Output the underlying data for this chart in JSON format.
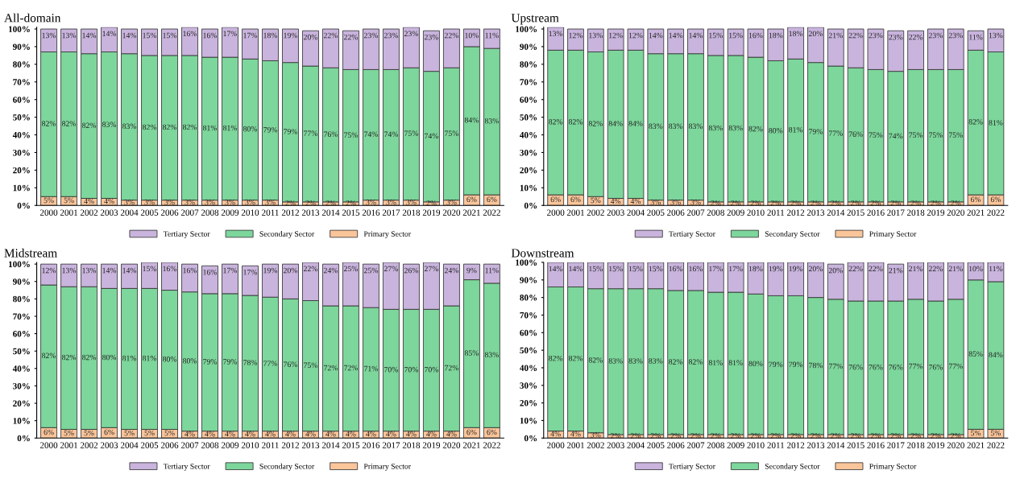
{
  "chart_data": [
    {
      "type": "bar",
      "title": "All-domain",
      "stacked": true,
      "legend": "bottom",
      "grid": false,
      "categories": [
        "2000",
        "2001",
        "2002",
        "2003",
        "2004",
        "2005",
        "2006",
        "2007",
        "2008",
        "2009",
        "2010",
        "2011",
        "2012",
        "2013",
        "2014",
        "2015",
        "2016",
        "2017",
        "2018",
        "2019",
        "2020",
        "2021",
        "2022"
      ],
      "ylim": [
        0,
        101
      ],
      "yticks": [
        {
          "value": 0,
          "label": "0%"
        },
        {
          "value": 10,
          "label": "10%"
        },
        {
          "value": 20,
          "label": "20%"
        },
        {
          "value": 30,
          "label": "30%"
        },
        {
          "value": 40,
          "label": "40%"
        },
        {
          "value": 50,
          "label": "50%"
        },
        {
          "value": 60,
          "label": "60%"
        },
        {
          "value": 70,
          "label": "70%"
        },
        {
          "value": 80,
          "label": "80%"
        },
        {
          "value": 90,
          "label": "90%"
        },
        {
          "value": 100,
          "label": "100%"
        }
      ],
      "series": [
        {
          "name": "Primary Sector",
          "color": "#fbc59a",
          "values": [
            5,
            5,
            4,
            4,
            3,
            3,
            3,
            3,
            3,
            3,
            3,
            3,
            2,
            2,
            2,
            2,
            3,
            3,
            3,
            2,
            3,
            6,
            6
          ],
          "value_labels": [
            "5%",
            "5%",
            "4%",
            "4%",
            "3%",
            "3%",
            "3%",
            "3%",
            "3%",
            "3%",
            "3%",
            "3%",
            "2%",
            "2%",
            "2%",
            "2%",
            "3%",
            "3%",
            "3%",
            "2%",
            "3%",
            "6%",
            "6%"
          ]
        },
        {
          "name": "Secondary Sector",
          "color": "#7dd69b",
          "values": [
            82,
            82,
            82,
            83,
            83,
            82,
            82,
            82,
            81,
            81,
            80,
            79,
            79,
            77,
            76,
            75,
            74,
            74,
            75,
            74,
            75,
            84,
            83
          ],
          "value_labels": [
            "82%",
            "82%",
            "82%",
            "83%",
            "83%",
            "82%",
            "82%",
            "82%",
            "81%",
            "81%",
            "80%",
            "79%",
            "79%",
            "77%",
            "76%",
            "75%",
            "74%",
            "74%",
            "75%",
            "74%",
            "75%",
            "84%",
            "83%"
          ]
        },
        {
          "name": "Tertiary Sector",
          "color": "#c9b4dd",
          "values": [
            13,
            13,
            14,
            14,
            14,
            15,
            15,
            16,
            16,
            17,
            17,
            18,
            19,
            20,
            22,
            22,
            23,
            23,
            23,
            23,
            22,
            10,
            11
          ],
          "value_labels": [
            "13%",
            "13%",
            "14%",
            "14%",
            "14%",
            "15%",
            "15%",
            "16%",
            "16%",
            "17%",
            "17%",
            "18%",
            "19%",
            "20%",
            "22%",
            "22%",
            "23%",
            "23%",
            "23%",
            "23%",
            "22%",
            "10%",
            "11%"
          ]
        }
      ]
    },
    {
      "type": "bar",
      "title": "Upstream",
      "stacked": true,
      "legend": "bottom",
      "grid": false,
      "categories": [
        "2000",
        "2001",
        "2002",
        "2003",
        "2004",
        "2005",
        "2006",
        "2007",
        "2008",
        "2009",
        "2010",
        "2011",
        "2012",
        "2013",
        "2014",
        "2015",
        "2016",
        "2017",
        "2018",
        "2019",
        "2020",
        "2021",
        "2022"
      ],
      "ylim": [
        0,
        101
      ],
      "yticks": [
        {
          "value": 0,
          "label": "0%"
        },
        {
          "value": 10,
          "label": "10%"
        },
        {
          "value": 20,
          "label": "20%"
        },
        {
          "value": 30,
          "label": "30%"
        },
        {
          "value": 40,
          "label": "40%"
        },
        {
          "value": 50,
          "label": "50%"
        },
        {
          "value": 60,
          "label": "60%"
        },
        {
          "value": 70,
          "label": "70%"
        },
        {
          "value": 80,
          "label": "80%"
        },
        {
          "value": 90,
          "label": "90%"
        },
        {
          "value": 100,
          "label": "100%"
        }
      ],
      "series": [
        {
          "name": "Primary Sector",
          "color": "#fbc59a",
          "values": [
            6,
            6,
            5,
            4,
            4,
            3,
            3,
            3,
            2,
            2,
            2,
            2,
            2,
            2,
            2,
            2,
            2,
            2,
            2,
            2,
            2,
            6,
            6
          ],
          "value_labels": [
            "6%",
            "6%",
            "5%",
            "4%",
            "4%",
            "3%",
            "3%",
            "3%",
            "2%",
            "2%",
            "2%",
            "2%",
            "2%",
            "2%",
            "2%",
            "2%",
            "2%",
            "2%",
            "2%",
            "2%",
            "2%",
            "6%",
            "6%"
          ]
        },
        {
          "name": "Secondary Sector",
          "color": "#7dd69b",
          "values": [
            82,
            82,
            82,
            84,
            84,
            83,
            83,
            83,
            83,
            83,
            82,
            80,
            81,
            79,
            77,
            76,
            75,
            74,
            75,
            75,
            75,
            82,
            81
          ],
          "value_labels": [
            "82%",
            "82%",
            "82%",
            "84%",
            "84%",
            "83%",
            "83%",
            "83%",
            "83%",
            "83%",
            "82%",
            "80%",
            "81%",
            "79%",
            "77%",
            "76%",
            "75%",
            "74%",
            "75%",
            "75%",
            "75%",
            "82%",
            "81%"
          ]
        },
        {
          "name": "Tertiary Sector",
          "color": "#c9b4dd",
          "values": [
            13,
            12,
            13,
            12,
            12,
            14,
            14,
            14,
            15,
            15,
            16,
            18,
            18,
            20,
            21,
            22,
            23,
            23,
            22,
            23,
            23,
            11,
            13
          ],
          "value_labels": [
            "13%",
            "12%",
            "13%",
            "12%",
            "12%",
            "14%",
            "14%",
            "14%",
            "15%",
            "15%",
            "16%",
            "18%",
            "18%",
            "20%",
            "21%",
            "22%",
            "23%",
            "23%",
            "22%",
            "23%",
            "23%",
            "11%",
            "13%"
          ]
        }
      ]
    },
    {
      "type": "bar",
      "title": "Midstream",
      "stacked": true,
      "legend": "bottom",
      "grid": false,
      "categories": [
        "2000",
        "2001",
        "2002",
        "2003",
        "2004",
        "2005",
        "2006",
        "2007",
        "2008",
        "2009",
        "2010",
        "2011",
        "2012",
        "2013",
        "2014",
        "2015",
        "2016",
        "2017",
        "2018",
        "2019",
        "2020",
        "2021",
        "2022"
      ],
      "ylim": [
        0,
        101
      ],
      "yticks": [
        {
          "value": 0,
          "label": "0%"
        },
        {
          "value": 10,
          "label": "10%"
        },
        {
          "value": 20,
          "label": "20%"
        },
        {
          "value": 30,
          "label": "30%"
        },
        {
          "value": 40,
          "label": "40%"
        },
        {
          "value": 50,
          "label": "50%"
        },
        {
          "value": 60,
          "label": "60%"
        },
        {
          "value": 70,
          "label": "70%"
        },
        {
          "value": 80,
          "label": "80%"
        },
        {
          "value": 90,
          "label": "90%"
        },
        {
          "value": 100,
          "label": "100%"
        }
      ],
      "series": [
        {
          "name": "Primary Sector",
          "color": "#fbc59a",
          "values": [
            6,
            5,
            5,
            6,
            5,
            5,
            5,
            4,
            4,
            4,
            4,
            4,
            4,
            4,
            4,
            4,
            4,
            4,
            4,
            4,
            4,
            6,
            6
          ],
          "value_labels": [
            "6%",
            "5%",
            "5%",
            "6%",
            "5%",
            "5%",
            "5%",
            "4%",
            "4%",
            "4%",
            "4%",
            "4%",
            "4%",
            "4%",
            "4%",
            "4%",
            "4%",
            "4%",
            "4%",
            "4%",
            "4%",
            "6%",
            "6%"
          ]
        },
        {
          "name": "Secondary Sector",
          "color": "#7dd69b",
          "values": [
            82,
            82,
            82,
            80,
            81,
            81,
            80,
            80,
            79,
            79,
            78,
            77,
            76,
            75,
            72,
            72,
            71,
            70,
            70,
            70,
            72,
            85,
            83
          ],
          "value_labels": [
            "82%",
            "82%",
            "82%",
            "80%",
            "81%",
            "81%",
            "80%",
            "80%",
            "79%",
            "79%",
            "78%",
            "77%",
            "76%",
            "75%",
            "72%",
            "72%",
            "71%",
            "70%",
            "70%",
            "70%",
            "72%",
            "85%",
            "83%"
          ]
        },
        {
          "name": "Tertiary Sector",
          "color": "#c9b4dd",
          "values": [
            12,
            13,
            13,
            14,
            14,
            15,
            16,
            16,
            16,
            17,
            17,
            19,
            20,
            22,
            24,
            25,
            25,
            27,
            26,
            27,
            24,
            9,
            11
          ],
          "value_labels": [
            "12%",
            "13%",
            "13%",
            "14%",
            "14%",
            "15%",
            "16%",
            "16%",
            "16%",
            "17%",
            "17%",
            "19%",
            "20%",
            "22%",
            "24%",
            "25%",
            "25%",
            "27%",
            "26%",
            "27%",
            "24%",
            "9%",
            "11%"
          ]
        }
      ]
    },
    {
      "type": "bar",
      "title": "Downstream",
      "stacked": true,
      "legend": "bottom",
      "grid": false,
      "categories": [
        "2000",
        "2001",
        "2002",
        "2003",
        "2004",
        "2005",
        "2006",
        "2007",
        "2008",
        "2009",
        "2010",
        "2011",
        "2012",
        "2013",
        "2014",
        "2015",
        "2016",
        "2017",
        "2018",
        "2019",
        "2020",
        "2021",
        "2022"
      ],
      "ylim": [
        0,
        100
      ],
      "yticks": [
        {
          "value": 0,
          "label": "0%"
        },
        {
          "value": 10,
          "label": "10%"
        },
        {
          "value": 20,
          "label": "20%"
        },
        {
          "value": 30,
          "label": "30%"
        },
        {
          "value": 40,
          "label": "40%"
        },
        {
          "value": 50,
          "label": "50%"
        },
        {
          "value": 60,
          "label": "60%"
        },
        {
          "value": 70,
          "label": "70%"
        },
        {
          "value": 80,
          "label": "80%"
        },
        {
          "value": 90,
          "label": "90%"
        },
        {
          "value": 100,
          "label": "100%"
        }
      ],
      "series": [
        {
          "name": "Primary Sector",
          "color": "#fbc59a",
          "values": [
            4,
            4,
            3,
            2,
            2,
            2,
            2,
            2,
            2,
            2,
            2,
            2,
            2,
            2,
            2,
            2,
            2,
            2,
            2,
            2,
            2,
            5,
            5
          ],
          "value_labels": [
            "4%",
            "4%",
            "3%",
            "2%",
            "2%",
            "2%",
            "2%",
            "2%",
            "2%",
            "2%",
            "2%",
            "2%",
            "2%",
            "2%",
            "2%",
            "2%",
            "2%",
            "2%",
            "2%",
            "2%",
            "2%",
            "5%",
            "5%"
          ]
        },
        {
          "name": "Secondary Sector",
          "color": "#7dd69b",
          "values": [
            82,
            82,
            82,
            83,
            83,
            83,
            82,
            82,
            81,
            81,
            80,
            79,
            79,
            78,
            77,
            76,
            76,
            76,
            77,
            76,
            77,
            85,
            84
          ],
          "value_labels": [
            "82%",
            "82%",
            "82%",
            "83%",
            "83%",
            "83%",
            "82%",
            "82%",
            "81%",
            "81%",
            "80%",
            "79%",
            "79%",
            "78%",
            "77%",
            "76%",
            "76%",
            "76%",
            "77%",
            "76%",
            "77%",
            "85%",
            "84%"
          ]
        },
        {
          "name": "Tertiary Sector",
          "color": "#c9b4dd",
          "values": [
            14,
            14,
            15,
            15,
            15,
            15,
            16,
            16,
            17,
            17,
            18,
            19,
            19,
            20,
            20,
            22,
            22,
            21,
            21,
            22,
            21,
            10,
            11
          ],
          "value_labels": [
            "14%",
            "14%",
            "15%",
            "15%",
            "15%",
            "15%",
            "16%",
            "16%",
            "17%",
            "17%",
            "18%",
            "19%",
            "19%",
            "20%",
            "20%",
            "22%",
            "22%",
            "21%",
            "21%",
            "22%",
            "21%",
            "10%",
            "11%"
          ]
        }
      ]
    }
  ]
}
